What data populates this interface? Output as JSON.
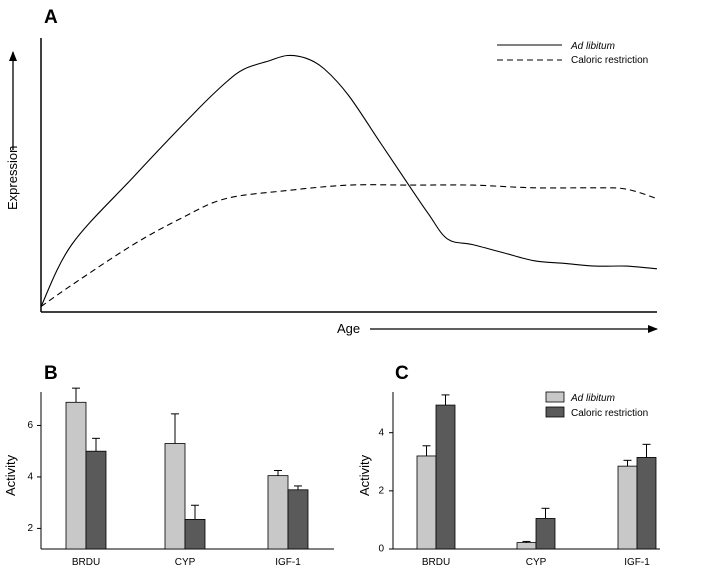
{
  "colors": {
    "ad_libitum_bar": "#c8c8c8",
    "caloric_restriction_bar": "#5a5a5a",
    "line": "#000000",
    "background": "#ffffff"
  },
  "chart_data": [
    {
      "panel": "A",
      "type": "line",
      "xlabel": "Age",
      "ylabel": "Expression",
      "legend_position": "top-right",
      "grid": false,
      "xlim": [
        0,
        100
      ],
      "ylim": [
        0,
        100
      ],
      "x_ticks": [],
      "y_ticks": [],
      "series": [
        {
          "name": "Ad libitum",
          "style": "solid",
          "points": [
            [
              0,
              2
            ],
            [
              5,
              25
            ],
            [
              15,
              50
            ],
            [
              25,
              74
            ],
            [
              30,
              85
            ],
            [
              33,
              90
            ],
            [
              37,
              93
            ],
            [
              40,
              95
            ],
            [
              43,
              94
            ],
            [
              46,
              90
            ],
            [
              50,
              80
            ],
            [
              55,
              63
            ],
            [
              60,
              46
            ],
            [
              63,
              36
            ],
            [
              66,
              27
            ],
            [
              70,
              25
            ],
            [
              75,
              22
            ],
            [
              80,
              19
            ],
            [
              85,
              18
            ],
            [
              90,
              17
            ],
            [
              95,
              17
            ],
            [
              100,
              16
            ]
          ]
        },
        {
          "name": "Caloric restriction",
          "style": "dashed",
          "points": [
            [
              0,
              2
            ],
            [
              5,
              10
            ],
            [
              15,
              25
            ],
            [
              23,
              35
            ],
            [
              30,
              42
            ],
            [
              40,
              45
            ],
            [
              50,
              47
            ],
            [
              60,
              47
            ],
            [
              70,
              47
            ],
            [
              80,
              46
            ],
            [
              90,
              46
            ],
            [
              95,
              45.5
            ],
            [
              100,
              42
            ]
          ]
        }
      ]
    },
    {
      "panel": "B",
      "type": "bar",
      "ylabel": "Activity",
      "xlabel": "",
      "categories": [
        "BRDU",
        "CYP",
        "IGF-1"
      ],
      "ylim": [
        1.2,
        7.3
      ],
      "y_ticks": [
        "2",
        "4",
        "6"
      ],
      "grid": false,
      "series": [
        {
          "name": "Ad libitum",
          "values": [
            6.9,
            5.3,
            4.05
          ],
          "errors": [
            0.55,
            1.15,
            0.2
          ]
        },
        {
          "name": "Caloric restriction",
          "values": [
            5.0,
            2.35,
            3.5
          ],
          "errors": [
            0.5,
            0.55,
            0.15
          ]
        }
      ]
    },
    {
      "panel": "C",
      "type": "bar",
      "ylabel": "Activity",
      "xlabel": "",
      "categories": [
        "BRDU",
        "CYP",
        "IGF-1"
      ],
      "ylim": [
        0,
        5.4
      ],
      "y_ticks": [
        "0",
        "2",
        "4"
      ],
      "legend_position": "top-right",
      "grid": false,
      "series": [
        {
          "name": "Ad libitum",
          "values": [
            3.2,
            0.22,
            2.85
          ],
          "errors": [
            0.35,
            0.04,
            0.2
          ]
        },
        {
          "name": "Caloric restriction",
          "values": [
            4.95,
            1.05,
            3.15
          ],
          "errors": [
            0.35,
            0.35,
            0.45
          ]
        }
      ]
    }
  ]
}
